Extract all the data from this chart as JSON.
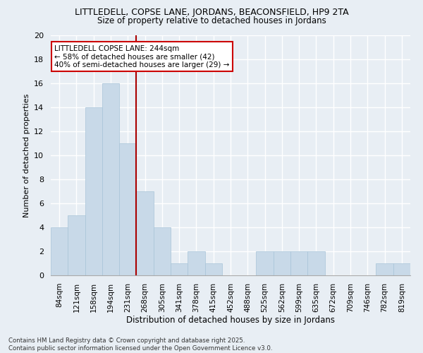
{
  "title1": "LITTLEDELL, COPSE LANE, JORDANS, BEACONSFIELD, HP9 2TA",
  "title2": "Size of property relative to detached houses in Jordans",
  "xlabel": "Distribution of detached houses by size in Jordans",
  "ylabel": "Number of detached properties",
  "categories": [
    "84sqm",
    "121sqm",
    "158sqm",
    "194sqm",
    "231sqm",
    "268sqm",
    "305sqm",
    "341sqm",
    "378sqm",
    "415sqm",
    "452sqm",
    "488sqm",
    "525sqm",
    "562sqm",
    "599sqm",
    "635sqm",
    "672sqm",
    "709sqm",
    "746sqm",
    "782sqm",
    "819sqm"
  ],
  "values": [
    4,
    5,
    14,
    16,
    11,
    7,
    4,
    1,
    2,
    1,
    0,
    0,
    2,
    2,
    2,
    2,
    0,
    0,
    0,
    1,
    1
  ],
  "bar_color": "#c8d9e8",
  "bar_edge_color": "#a8c4d8",
  "vline_x": 4.5,
  "vline_color": "#aa0000",
  "annotation_text": "LITTLEDELL COPSE LANE: 244sqm\n← 58% of detached houses are smaller (42)\n40% of semi-detached houses are larger (29) →",
  "annotation_box_color": "#ffffff",
  "annotation_box_edge": "#cc0000",
  "ylim": [
    0,
    20
  ],
  "yticks": [
    0,
    2,
    4,
    6,
    8,
    10,
    12,
    14,
    16,
    18,
    20
  ],
  "footer": "Contains HM Land Registry data © Crown copyright and database right 2025.\nContains public sector information licensed under the Open Government Licence v3.0.",
  "background_color": "#e8eef4",
  "grid_color": "#ffffff"
}
